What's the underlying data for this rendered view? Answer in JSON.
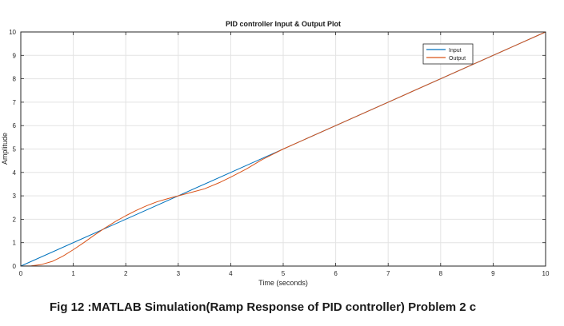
{
  "chart_data": {
    "type": "line",
    "title": "PID controller Input & Output Plot",
    "xlabel": "Time (seconds)",
    "ylabel": "Amplitude",
    "xlim": [
      0,
      10
    ],
    "ylim": [
      0,
      10
    ],
    "xticks": [
      "0",
      "1",
      "2",
      "3",
      "4",
      "5",
      "6",
      "7",
      "8",
      "9",
      "10"
    ],
    "yticks": [
      "0",
      "1",
      "2",
      "3",
      "4",
      "5",
      "6",
      "7",
      "8",
      "9",
      "10"
    ],
    "grid": true,
    "legend_position": "top-right",
    "series": [
      {
        "name": "Input",
        "color": "#0072bd",
        "x": [
          0,
          10
        ],
        "y": [
          0,
          10
        ]
      },
      {
        "name": "Output",
        "color": "#d95319",
        "x": [
          0,
          0.2,
          0.4,
          0.6,
          0.8,
          1.0,
          1.2,
          1.4,
          1.6,
          1.8,
          2.0,
          2.2,
          2.4,
          2.6,
          2.8,
          3.0,
          3.2,
          3.5,
          3.8,
          4.0,
          4.3,
          4.6,
          5.0,
          5.5,
          6.0,
          7.0,
          8.0,
          9.0,
          10.0
        ],
        "y": [
          0,
          0.01,
          0.07,
          0.2,
          0.42,
          0.7,
          1.0,
          1.32,
          1.62,
          1.9,
          2.15,
          2.38,
          2.58,
          2.75,
          2.88,
          3.0,
          3.12,
          3.3,
          3.58,
          3.8,
          4.15,
          4.55,
          5.0,
          5.5,
          6.0,
          7.0,
          8.0,
          9.0,
          10.0
        ]
      }
    ]
  },
  "caption": "Fig 12 :MATLAB Simulation(Ramp Response of PID controller) Problem 2 c"
}
